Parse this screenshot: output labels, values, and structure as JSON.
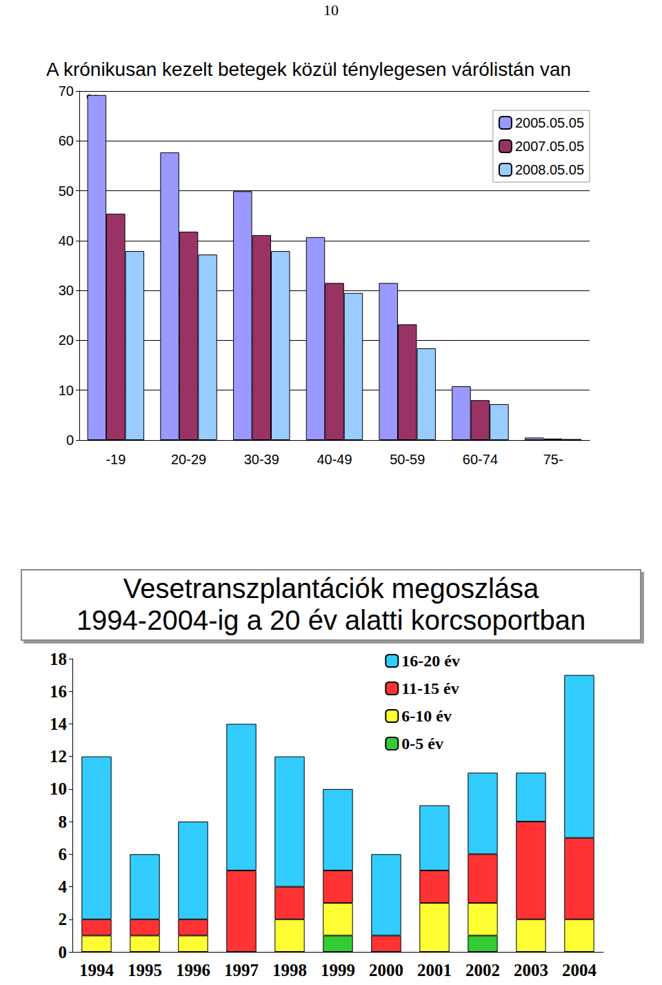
{
  "page_number": "10",
  "chart_data": [
    {
      "type": "bar",
      "title": "A krónikusan kezelt betegek közül ténylegesen várólistán van",
      "ylabel": "%",
      "categories": [
        "-19",
        "20-29",
        "30-39",
        "40-49",
        "50-59",
        "60-74",
        "75-"
      ],
      "series": [
        {
          "name": "2005.05.05",
          "color": "#9999ff",
          "values": [
            69.2,
            57.7,
            49.9,
            40.7,
            31.5,
            10.8,
            0.5
          ]
        },
        {
          "name": "2007.05.05",
          "color": "#993366",
          "values": [
            45.4,
            41.8,
            41.1,
            31.5,
            23.2,
            8,
            0.3
          ]
        },
        {
          "name": "2008.05.05",
          "color": "#99ccff",
          "values": [
            37.9,
            37.2,
            37.9,
            29.5,
            18.4,
            7.2,
            0.2
          ]
        }
      ],
      "ylim": [
        0,
        70
      ],
      "yticks": [
        0,
        10,
        20,
        30,
        40,
        50,
        60,
        70
      ],
      "grid": true,
      "legend": "top-right"
    },
    {
      "type": "bar",
      "title": "Vesetranszplantációk megoszlása\n1994-2004-ig a 20 év alatti korcsoportban",
      "categories": [
        "1994",
        "1995",
        "1996",
        "1997",
        "1998",
        "1999",
        "2000",
        "2001",
        "2002",
        "2003",
        "2004"
      ],
      "series": [
        {
          "name": "16-20 év",
          "color": "#33ccff",
          "values": [
            10,
            4,
            6,
            9,
            8,
            5,
            5,
            4,
            5,
            3,
            10
          ]
        },
        {
          "name": "11-15 év",
          "color": "#ff3333",
          "values": [
            1,
            1,
            1,
            5,
            2,
            2,
            1,
            2,
            3,
            6,
            5
          ]
        },
        {
          "name": "6-10 év",
          "color": "#ffff33",
          "values": [
            1,
            1,
            1,
            0,
            2,
            2,
            0,
            3,
            2,
            2,
            2
          ]
        },
        {
          "name": "0-5 év",
          "color": "#33cc33",
          "values": [
            0,
            0,
            0,
            0,
            0,
            1,
            0,
            0,
            1,
            0,
            0
          ]
        }
      ],
      "ylim": [
        0,
        18
      ],
      "yticks": [
        0,
        2,
        4,
        6,
        8,
        10,
        12,
        14,
        16,
        18
      ],
      "stacked": true,
      "grid": false,
      "legend": "top-right"
    }
  ]
}
